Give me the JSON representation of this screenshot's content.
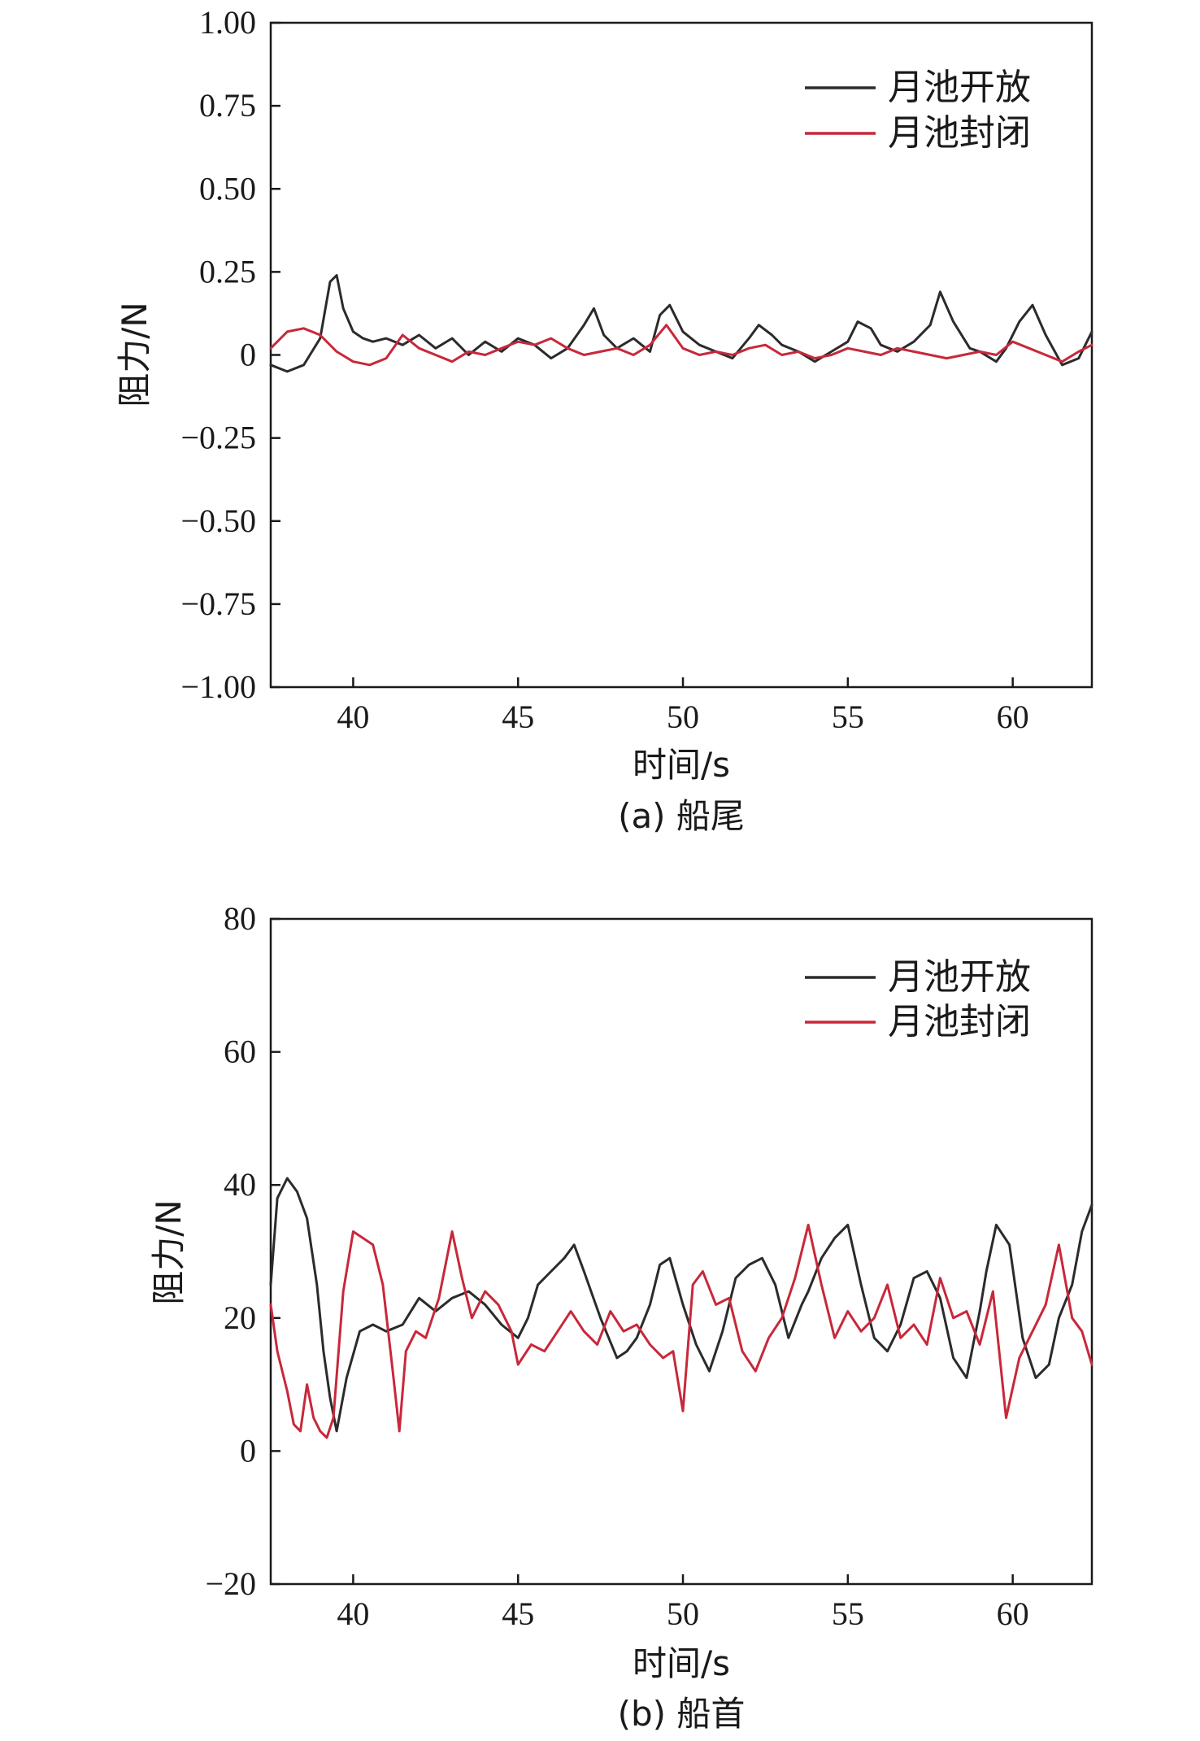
{
  "chart_data": [
    {
      "type": "line",
      "caption": "(a) 船尾",
      "xlabel": "时间/s",
      "ylabel": "阻力/N",
      "xlim": [
        37.5,
        62.4
      ],
      "ylim": [
        -1.0,
        1.0
      ],
      "xticks": [
        "40",
        "45",
        "50",
        "55",
        "60"
      ],
      "yticks": [
        "1.00",
        "0.75",
        "0.50",
        "0.25",
        "0",
        "−0.25",
        "−0.50",
        "−0.75",
        "−1.00"
      ],
      "legend": "top-right",
      "series": [
        {
          "name": "月池开放",
          "color": "#2b2b2b",
          "x": [
            37.5,
            38.0,
            38.5,
            39.0,
            39.3,
            39.5,
            39.7,
            40.0,
            40.3,
            40.6,
            41.0,
            41.5,
            42.0,
            42.5,
            43.0,
            43.5,
            44.0,
            44.5,
            45.0,
            45.5,
            46.0,
            46.5,
            47.0,
            47.3,
            47.6,
            48.0,
            48.5,
            49.0,
            49.3,
            49.6,
            50.0,
            50.5,
            51.0,
            51.5,
            52.0,
            52.3,
            52.7,
            53.0,
            53.5,
            54.0,
            54.5,
            55.0,
            55.3,
            55.7,
            56.0,
            56.5,
            57.0,
            57.5,
            57.8,
            58.2,
            58.7,
            59.0,
            59.5,
            59.8,
            60.2,
            60.6,
            61.0,
            61.5,
            62.0,
            62.4
          ],
          "y": [
            -0.03,
            -0.05,
            -0.03,
            0.05,
            0.22,
            0.24,
            0.14,
            0.07,
            0.05,
            0.04,
            0.05,
            0.03,
            0.06,
            0.02,
            0.05,
            0.0,
            0.04,
            0.01,
            0.05,
            0.03,
            -0.01,
            0.02,
            0.09,
            0.14,
            0.06,
            0.02,
            0.05,
            0.01,
            0.12,
            0.15,
            0.07,
            0.03,
            0.01,
            -0.01,
            0.05,
            0.09,
            0.06,
            0.03,
            0.01,
            -0.02,
            0.01,
            0.04,
            0.1,
            0.08,
            0.03,
            0.01,
            0.04,
            0.09,
            0.19,
            0.1,
            0.02,
            0.01,
            -0.02,
            0.02,
            0.1,
            0.15,
            0.06,
            -0.03,
            -0.01,
            0.07
          ]
        },
        {
          "name": "月池封闭",
          "color": "#c8283a",
          "x": [
            37.5,
            38.0,
            38.5,
            39.0,
            39.5,
            40.0,
            40.5,
            41.0,
            41.5,
            42.0,
            42.5,
            43.0,
            43.5,
            44.0,
            44.5,
            45.0,
            45.5,
            46.0,
            46.5,
            47.0,
            47.5,
            48.0,
            48.5,
            49.0,
            49.5,
            50.0,
            50.5,
            51.0,
            51.5,
            52.0,
            52.5,
            53.0,
            53.5,
            54.0,
            54.5,
            55.0,
            55.5,
            56.0,
            56.5,
            57.0,
            57.5,
            58.0,
            58.5,
            59.0,
            59.5,
            60.0,
            60.5,
            61.0,
            61.5,
            62.0,
            62.4
          ],
          "y": [
            0.02,
            0.07,
            0.08,
            0.06,
            0.01,
            -0.02,
            -0.03,
            -0.01,
            0.06,
            0.02,
            0.0,
            -0.02,
            0.01,
            0.0,
            0.02,
            0.04,
            0.03,
            0.05,
            0.02,
            0.0,
            0.01,
            0.02,
            0.0,
            0.03,
            0.09,
            0.02,
            0.0,
            0.01,
            0.0,
            0.02,
            0.03,
            0.0,
            0.01,
            -0.01,
            0.0,
            0.02,
            0.01,
            0.0,
            0.02,
            0.01,
            0.0,
            -0.01,
            0.0,
            0.01,
            0.0,
            0.04,
            0.02,
            0.0,
            -0.02,
            0.01,
            0.03
          ]
        }
      ]
    },
    {
      "type": "line",
      "caption": "(b) 船首",
      "xlabel": "时间/s",
      "ylabel": "阻力/N",
      "xlim": [
        37.5,
        62.4
      ],
      "ylim": [
        -20,
        80
      ],
      "xticks": [
        "40",
        "45",
        "50",
        "55",
        "60"
      ],
      "yticks": [
        "80",
        "60",
        "40",
        "20",
        "0",
        "−20"
      ],
      "legend": "top-right",
      "series": [
        {
          "name": "月池开放",
          "color": "#2b2b2b",
          "x": [
            37.5,
            37.7,
            38.0,
            38.3,
            38.6,
            38.9,
            39.1,
            39.3,
            39.5,
            39.8,
            40.2,
            40.6,
            41.0,
            41.5,
            42.0,
            42.5,
            43.0,
            43.5,
            44.0,
            44.5,
            45.0,
            45.3,
            45.6,
            46.0,
            46.4,
            46.7,
            47.0,
            47.5,
            48.0,
            48.3,
            48.6,
            49.0,
            49.3,
            49.6,
            50.0,
            50.4,
            50.8,
            51.2,
            51.6,
            52.0,
            52.4,
            52.8,
            53.2,
            53.6,
            53.8,
            54.2,
            54.6,
            55.0,
            55.4,
            55.8,
            56.2,
            56.6,
            57.0,
            57.4,
            57.8,
            58.2,
            58.6,
            59.0,
            59.2,
            59.5,
            59.9,
            60.3,
            60.7,
            61.1,
            61.4,
            61.8,
            62.1,
            62.4
          ],
          "y": [
            25,
            38,
            41,
            39,
            35,
            25,
            15,
            8,
            3,
            11,
            18,
            19,
            18,
            19,
            23,
            21,
            23,
            24,
            22,
            19,
            17,
            20,
            25,
            27,
            29,
            31,
            27,
            20,
            14,
            15,
            17,
            22,
            28,
            29,
            22,
            16,
            12,
            18,
            26,
            28,
            29,
            25,
            17,
            22,
            24,
            29,
            32,
            34,
            25,
            17,
            15,
            19,
            26,
            27,
            23,
            14,
            11,
            21,
            27,
            34,
            31,
            17,
            11,
            13,
            20,
            25,
            33,
            37
          ]
        },
        {
          "name": "月池封闭",
          "color": "#c8283a",
          "x": [
            37.5,
            37.7,
            38.0,
            38.2,
            38.4,
            38.6,
            38.8,
            39.0,
            39.2,
            39.4,
            39.7,
            40.0,
            40.3,
            40.6,
            40.9,
            41.2,
            41.4,
            41.6,
            41.9,
            42.2,
            42.6,
            43.0,
            43.3,
            43.6,
            44.0,
            44.4,
            44.8,
            45.0,
            45.4,
            45.8,
            46.2,
            46.6,
            47.0,
            47.4,
            47.8,
            48.2,
            48.6,
            49.0,
            49.4,
            49.7,
            50.0,
            50.3,
            50.6,
            51.0,
            51.4,
            51.8,
            52.2,
            52.6,
            53.0,
            53.4,
            53.8,
            54.2,
            54.6,
            55.0,
            55.4,
            55.8,
            56.2,
            56.6,
            57.0,
            57.4,
            57.8,
            58.2,
            58.6,
            59.0,
            59.4,
            59.8,
            60.2,
            60.6,
            61.0,
            61.4,
            61.8,
            62.1,
            62.4
          ],
          "y": [
            22,
            15,
            9,
            4,
            3,
            10,
            5,
            3,
            2,
            5,
            24,
            33,
            32,
            31,
            25,
            12,
            3,
            15,
            18,
            17,
            23,
            33,
            26,
            20,
            24,
            22,
            18,
            13,
            16,
            15,
            18,
            21,
            18,
            16,
            21,
            18,
            19,
            16,
            14,
            15,
            6,
            25,
            27,
            22,
            23,
            15,
            12,
            17,
            20,
            26,
            34,
            25,
            17,
            21,
            18,
            20,
            25,
            17,
            19,
            16,
            26,
            20,
            21,
            16,
            24,
            5,
            14,
            18,
            22,
            31,
            20,
            18,
            13
          ]
        }
      ]
    }
  ]
}
